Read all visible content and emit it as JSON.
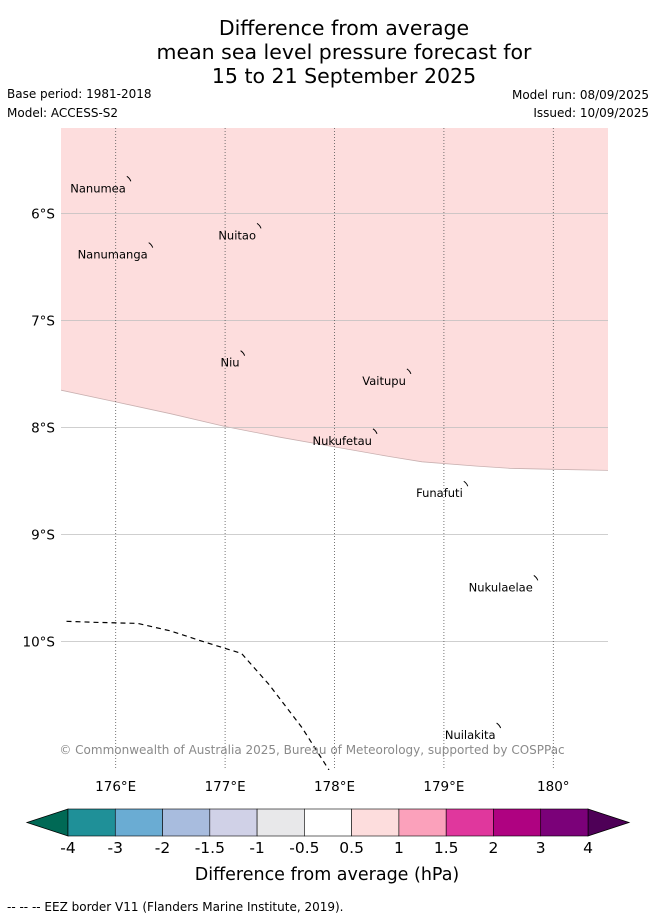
{
  "title": {
    "line1": "Difference from average",
    "line2": "mean sea level pressure forecast for",
    "line3": "15 to 21 September 2025"
  },
  "meta": {
    "base_period": "Base period: 1981-2018",
    "model": "Model: ACCESS-S2",
    "model_run": "Model run: 08/09/2025",
    "issued": "Issued: 10/09/2025"
  },
  "map": {
    "lon_range": [
      175.5,
      180.5
    ],
    "lat_range": [
      -5.2,
      -11.2
    ],
    "lon_ticks": [
      {
        "value": 176,
        "label": "176°E"
      },
      {
        "value": 177,
        "label": "177°E"
      },
      {
        "value": 178,
        "label": "178°E"
      },
      {
        "value": 179,
        "label": "179°E"
      },
      {
        "value": 180,
        "label": "180°"
      }
    ],
    "lat_ticks": [
      {
        "value": -6,
        "label": "6°S"
      },
      {
        "value": -7,
        "label": "7°S"
      },
      {
        "value": -8,
        "label": "8°S"
      },
      {
        "value": -9,
        "label": "9°S"
      },
      {
        "value": -10,
        "label": "10°S"
      }
    ],
    "anomaly_region": {
      "category": "0.5 to 1",
      "color": "#fddddd",
      "southern_boundary": [
        [
          175.5,
          -7.65
        ],
        [
          176.0,
          -7.76
        ],
        [
          176.5,
          -7.87
        ],
        [
          177.0,
          -7.99
        ],
        [
          177.5,
          -8.09
        ],
        [
          178.0,
          -8.18
        ],
        [
          178.5,
          -8.27
        ],
        [
          178.8,
          -8.32
        ],
        [
          179.3,
          -8.36
        ],
        [
          179.6,
          -8.38
        ],
        [
          180.0,
          -8.39
        ],
        [
          180.5,
          -8.4
        ]
      ]
    },
    "eez_border": [
      [
        175.55,
        -9.81
      ],
      [
        175.8,
        -9.82
      ],
      [
        176.2,
        -9.83
      ],
      [
        176.5,
        -9.9
      ],
      [
        176.8,
        -10.0
      ],
      [
        177.15,
        -10.11
      ],
      [
        177.4,
        -10.4
      ],
      [
        177.7,
        -10.8
      ],
      [
        177.95,
        -11.2
      ]
    ],
    "islands": [
      {
        "name": "Nanumea",
        "lon": 176.12,
        "lat": -5.67
      },
      {
        "name": "Nuitao",
        "lon": 177.31,
        "lat": -6.11
      },
      {
        "name": "Nanumanga",
        "lon": 176.32,
        "lat": -6.29
      },
      {
        "name": "Niu",
        "lon": 177.16,
        "lat": -7.3
      },
      {
        "name": "Vaitupu",
        "lon": 178.68,
        "lat": -7.47
      },
      {
        "name": "Nukufetau",
        "lon": 178.37,
        "lat": -8.03
      },
      {
        "name": "Funafuti",
        "lon": 179.2,
        "lat": -8.52
      },
      {
        "name": "Nukulaelae",
        "lon": 179.84,
        "lat": -9.4
      },
      {
        "name": "Nuilakita",
        "lon": 179.5,
        "lat": -10.78
      }
    ],
    "copyright": "© Commonwealth of Australia 2025, Bureau of Meteorology, supported by COSPPac"
  },
  "colorbar": {
    "label": "Difference from average (hPa)",
    "min_color": "#006955",
    "max_color": "#4e0057",
    "bins": [
      {
        "color": "#1f9098"
      },
      {
        "color": "#6aacd3"
      },
      {
        "color": "#a8bcde"
      },
      {
        "color": "#d0d1e7"
      },
      {
        "color": "#e8e8ea"
      },
      {
        "color": "#ffffff"
      },
      {
        "color": "#fddddd"
      },
      {
        "color": "#fba1bb"
      },
      {
        "color": "#e0379d"
      },
      {
        "color": "#af0281"
      },
      {
        "color": "#7b0179"
      }
    ],
    "ticks": [
      "-4",
      "-3",
      "-2",
      "-1.5",
      "-1",
      "-0.5",
      "0.5",
      "1",
      "1.5",
      "2",
      "3",
      "4"
    ]
  },
  "footer": "-- -- -- EEZ border V11 (Flanders Marine Institute, 2019)."
}
